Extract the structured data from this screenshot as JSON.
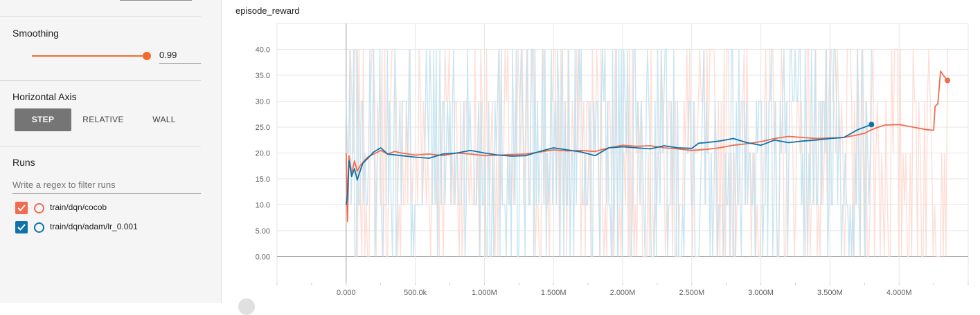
{
  "sidebar": {
    "smoothing": {
      "title": "Smoothing",
      "value": "0.99",
      "fraction": 0.99
    },
    "horizontal_axis": {
      "title": "Horizontal Axis",
      "options": [
        "STEP",
        "RELATIVE",
        "WALL"
      ],
      "selected": "STEP"
    },
    "runs": {
      "title": "Runs",
      "filter_placeholder": "Write a regex to filter runs",
      "items": [
        {
          "label": "train/dqn/cocob",
          "color": "#f26b4f",
          "checked": true
        },
        {
          "label": "train/dqn/adam/lr_0.001",
          "color": "#0f73a8",
          "checked": true
        }
      ]
    }
  },
  "chart": {
    "title": "episode_reward"
  },
  "chart_data": {
    "type": "line",
    "title": "episode_reward",
    "xlabel": "",
    "ylabel": "",
    "xlim": [
      -500000,
      4500000
    ],
    "ylim": [
      -5,
      45
    ],
    "x_ticks": [
      0,
      500000,
      1000000,
      1500000,
      2000000,
      2500000,
      3000000,
      3500000,
      4000000
    ],
    "x_tick_labels": [
      "0.000",
      "500.0k",
      "1.000M",
      "1.500M",
      "2.000M",
      "2.500M",
      "3.000M",
      "3.500M",
      "4.000M"
    ],
    "y_ticks": [
      0,
      5,
      10,
      15,
      20,
      25,
      30,
      35,
      40
    ],
    "y_tick_labels": [
      "0.00",
      "5.00",
      "10.0",
      "15.0",
      "20.0",
      "25.0",
      "30.0",
      "35.0",
      "40.0"
    ],
    "grid": true,
    "series": [
      {
        "name": "train/dqn/cocob",
        "color": "#f26b4f",
        "raw_color": "#fdd3c9",
        "raw_range": [
          0,
          4350000
        ],
        "x": [
          0,
          10000,
          20000,
          40000,
          60000,
          80000,
          100000,
          130000,
          160000,
          200000,
          250000,
          300000,
          350000,
          400000,
          500000,
          600000,
          700000,
          800000,
          900000,
          1000000,
          1100000,
          1200000,
          1300000,
          1400000,
          1500000,
          1600000,
          1700000,
          1800000,
          1900000,
          2000000,
          2100000,
          2200000,
          2300000,
          2400000,
          2500000,
          2600000,
          2700000,
          2800000,
          2900000,
          3000000,
          3100000,
          3200000,
          3300000,
          3400000,
          3500000,
          3600000,
          3700000,
          3750000,
          3800000,
          3850000,
          3900000,
          4000000,
          4100000,
          4200000,
          4250000,
          4260000,
          4280000,
          4300000,
          4320000,
          4350000
        ],
        "y": [
          20.0,
          6.8,
          19.5,
          16.0,
          18.5,
          16.5,
          17.5,
          18.5,
          19.3,
          19.8,
          20.5,
          19.8,
          20.3,
          20.0,
          19.6,
          19.8,
          19.5,
          20.0,
          19.8,
          19.5,
          19.6,
          19.7,
          19.8,
          20.2,
          20.6,
          20.4,
          20.5,
          20.3,
          21.0,
          21.5,
          21.3,
          21.4,
          21.0,
          20.8,
          20.5,
          20.7,
          21.0,
          21.5,
          21.8,
          22.2,
          22.8,
          23.2,
          23.0,
          22.8,
          22.9,
          23.0,
          23.5,
          23.8,
          24.5,
          25.0,
          25.4,
          25.5,
          25.0,
          24.5,
          24.4,
          29.0,
          29.5,
          35.8,
          35.0,
          34.0
        ]
      },
      {
        "name": "train/dqn/adam/lr_0.001",
        "color": "#0f73a8",
        "raw_color": "#bfe0ee",
        "raw_range": [
          0,
          3800000
        ],
        "x": [
          0,
          10000,
          20000,
          40000,
          60000,
          80000,
          100000,
          120000,
          150000,
          200000,
          250000,
          300000,
          400000,
          500000,
          600000,
          700000,
          800000,
          900000,
          1000000,
          1100000,
          1200000,
          1300000,
          1400000,
          1500000,
          1600000,
          1700000,
          1800000,
          1900000,
          2000000,
          2100000,
          2200000,
          2300000,
          2400000,
          2500000,
          2550000,
          2600000,
          2700000,
          2800000,
          2900000,
          3000000,
          3100000,
          3200000,
          3300000,
          3400000,
          3500000,
          3600000,
          3700000,
          3800000
        ],
        "y": [
          10.0,
          12.0,
          18.5,
          15.5,
          17.0,
          14.8,
          16.5,
          18.0,
          18.8,
          20.2,
          21.0,
          19.8,
          19.5,
          19.2,
          19.0,
          19.8,
          20.0,
          20.5,
          20.0,
          19.6,
          19.4,
          19.5,
          20.3,
          21.0,
          20.6,
          20.2,
          19.5,
          21.0,
          21.2,
          21.0,
          20.8,
          21.4,
          21.0,
          20.9,
          21.9,
          22.0,
          22.3,
          22.8,
          22.0,
          21.5,
          22.5,
          22.0,
          22.3,
          22.5,
          22.8,
          23.0,
          24.5,
          25.5
        ]
      }
    ]
  }
}
